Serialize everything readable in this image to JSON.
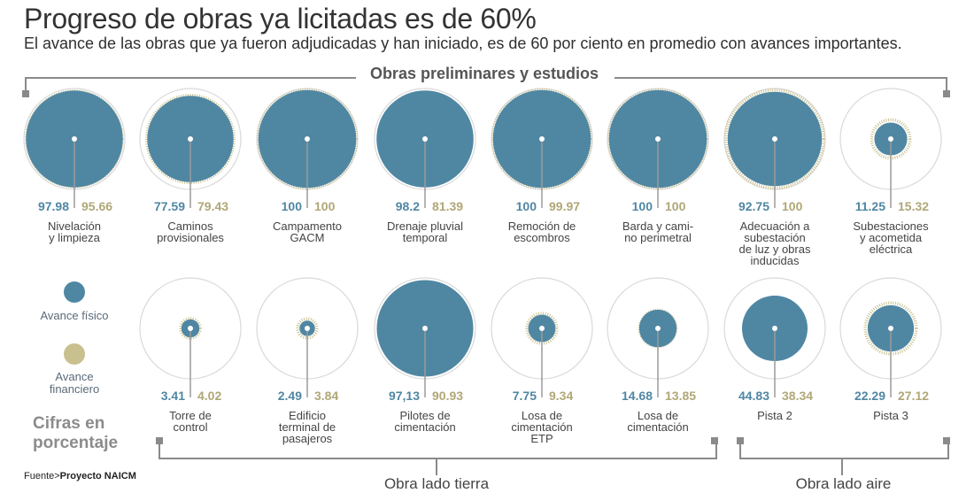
{
  "header": {
    "title": "Progreso de obras ya licitadas es de 60%",
    "subtitle": "El avance de las obras que ya fueron adjudicadas y han iniciado, es de 60 por ciento en promedio con avances importantes."
  },
  "sections": {
    "top": "Obras preliminares y estudios",
    "bottom_left": "Obra lado tierra",
    "bottom_right": "Obra lado aire"
  },
  "legend": {
    "physical": "Avance físico",
    "financial_line1": "Avance",
    "financial_line2": "financiero",
    "units_line1": "Cifras en",
    "units_line2": "porcentaje"
  },
  "source": {
    "prefix": "Fuente>",
    "name": "Proyecto NAICM"
  },
  "colors": {
    "physical": "#4f87a3",
    "financial": "#c9c08f",
    "outline": "#d9d9d9",
    "stem": "#9a9a9a"
  },
  "chart_data": {
    "type": "proportional-circles",
    "title": "Progreso de obras ya licitadas es de 60%",
    "unit": "Cifras en porcentaje",
    "max": 100,
    "rows": [
      {
        "group": "Obras preliminares y estudios",
        "items": [
          {
            "label": [
              "Nivelación",
              "y limpieza"
            ],
            "physical": 97.98,
            "physical_text": "97.98",
            "financial": 95.66,
            "financial_text": "95.66"
          },
          {
            "label": [
              "Caminos",
              "provisionales"
            ],
            "physical": 77.59,
            "physical_text": "77.59",
            "financial": 79.43,
            "financial_text": "79.43"
          },
          {
            "label": [
              "Campamento",
              "GACM"
            ],
            "physical": 100,
            "physical_text": "100",
            "financial": 100,
            "financial_text": "100"
          },
          {
            "label": [
              "Drenaje pluvial",
              "temporal"
            ],
            "physical": 98.2,
            "physical_text": "98.2",
            "financial": 81.39,
            "financial_text": "81.39"
          },
          {
            "label": [
              "Remoción de",
              "escombros"
            ],
            "physical": 100,
            "physical_text": "100",
            "financial": 99.97,
            "financial_text": "99.97"
          },
          {
            "label": [
              "Barda y cami-",
              "no perimetral"
            ],
            "physical": 100,
            "physical_text": "100",
            "financial": 100,
            "financial_text": "100"
          },
          {
            "label": [
              "Adecuación a",
              "subestación",
              "de luz y obras",
              "inducidas"
            ],
            "physical": 92.75,
            "physical_text": "92.75",
            "financial": 100,
            "financial_text": "100"
          },
          {
            "label": [
              "Subestaciones",
              "y acometida",
              "eléctrica"
            ],
            "physical": 11.25,
            "physical_text": "11.25",
            "financial": 15.32,
            "financial_text": "15.32"
          }
        ]
      },
      {
        "group": "Obra lado tierra / Obra lado aire",
        "items": [
          {
            "label": [
              "Torre de",
              "control"
            ],
            "physical": 3.41,
            "physical_text": "3.41",
            "financial": 4.02,
            "financial_text": "4.02"
          },
          {
            "label": [
              "Edificio",
              "terminal de",
              "pasajeros"
            ],
            "physical": 2.49,
            "physical_text": "2.49",
            "financial": 3.84,
            "financial_text": "3.84"
          },
          {
            "label": [
              "Pilotes de",
              "cimentación"
            ],
            "physical": 97.13,
            "physical_text": "97,13",
            "financial": 90.93,
            "financial_text": "90.93"
          },
          {
            "label": [
              "Losa de",
              "cimentación",
              "ETP"
            ],
            "physical": 7.75,
            "physical_text": "7.75",
            "financial": 9.34,
            "financial_text": "9.34"
          },
          {
            "label": [
              "Losa de",
              "cimentación"
            ],
            "physical": 14.68,
            "physical_text": "14.68",
            "financial": 13.85,
            "financial_text": "13.85"
          },
          {
            "label": [
              "Pista 2"
            ],
            "physical": 44.83,
            "physical_text": "44.83",
            "financial": 38.34,
            "financial_text": "38.34"
          },
          {
            "label": [
              "Pista 3"
            ],
            "physical": 22.29,
            "physical_text": "22.29",
            "financial": 27.12,
            "financial_text": "27.12"
          }
        ]
      }
    ]
  }
}
